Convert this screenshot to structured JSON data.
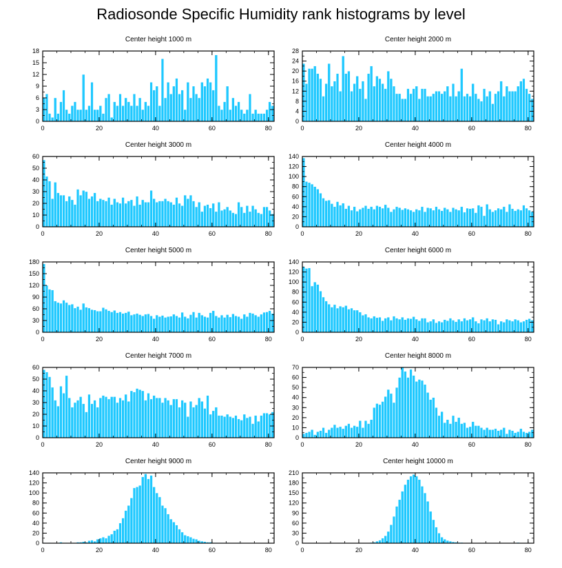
{
  "title": "Radiosonde Specific Humidity rank histograms by level",
  "colors": {
    "bar": "#1ec8ff",
    "bar_edge": "#ffffff",
    "axis": "#000000"
  },
  "chart_data": [
    {
      "type": "bar",
      "title": "Center height 1000 m",
      "xlim": [
        0,
        82
      ],
      "ylim": [
        0,
        18
      ],
      "xticks": [
        0,
        20,
        40,
        60,
        80
      ],
      "yticks": [
        0,
        3,
        6,
        9,
        12,
        15,
        18
      ],
      "values": [
        6,
        7,
        2,
        1,
        6,
        2,
        5,
        8,
        3,
        2,
        4,
        5,
        3,
        3,
        12,
        3,
        4,
        10,
        3,
        3,
        4,
        2,
        6,
        7,
        1,
        5,
        4,
        7,
        4,
        6,
        5,
        4,
        7,
        4,
        6,
        3,
        5,
        4,
        10,
        8,
        9,
        4,
        16,
        6,
        10,
        7,
        9,
        11,
        7,
        8,
        3,
        10,
        6,
        9,
        7,
        6,
        10,
        9,
        11,
        10,
        8,
        17,
        4,
        3,
        5,
        9,
        3,
        6,
        4,
        5,
        3,
        2,
        3,
        7,
        2,
        3,
        2,
        2,
        2,
        3,
        5,
        4
      ],
      "xlabel": "",
      "ylabel": ""
    },
    {
      "type": "bar",
      "title": "Center height 2000 m",
      "xlim": [
        0,
        82
      ],
      "ylim": [
        0,
        28
      ],
      "xticks": [
        0,
        20,
        40,
        60,
        80
      ],
      "yticks": [
        0,
        4,
        8,
        12,
        16,
        20,
        24,
        28
      ],
      "values": [
        23,
        15,
        21,
        21,
        22,
        19,
        17,
        10,
        15,
        23,
        14,
        16,
        19,
        12,
        26,
        19,
        20,
        12,
        15,
        18,
        13,
        16,
        9,
        19,
        22,
        14,
        18,
        17,
        15,
        13,
        20,
        17,
        14,
        11,
        11,
        9,
        9,
        13,
        11,
        13,
        14,
        9,
        13,
        13,
        10,
        10,
        11,
        12,
        12,
        11,
        12,
        14,
        10,
        15,
        10,
        12,
        21,
        10,
        11,
        10,
        15,
        11,
        9,
        8,
        13,
        10,
        12,
        7,
        11,
        12,
        16,
        10,
        14,
        12,
        12,
        12,
        14,
        16,
        17,
        13,
        11,
        9
      ],
      "xlabel": "",
      "ylabel": ""
    },
    {
      "type": "bar",
      "title": "Center height 3000 m",
      "xlim": [
        0,
        82
      ],
      "ylim": [
        0,
        60
      ],
      "xticks": [
        0,
        20,
        40,
        60,
        80
      ],
      "yticks": [
        0,
        10,
        20,
        30,
        40,
        50,
        60
      ],
      "values": [
        57,
        43,
        39,
        24,
        38,
        29,
        27,
        27,
        22,
        26,
        23,
        19,
        32,
        27,
        31,
        30,
        24,
        26,
        29,
        22,
        24,
        23,
        22,
        25,
        19,
        24,
        21,
        20,
        25,
        20,
        22,
        23,
        18,
        26,
        19,
        23,
        21,
        21,
        31,
        24,
        21,
        22,
        22,
        24,
        22,
        21,
        19,
        25,
        20,
        18,
        27,
        24,
        27,
        22,
        17,
        21,
        13,
        18,
        19,
        16,
        20,
        13,
        21,
        14,
        15,
        17,
        14,
        12,
        11,
        21,
        17,
        12,
        18,
        13,
        18,
        15,
        12,
        11,
        17,
        17,
        14,
        11
      ],
      "xlabel": "",
      "ylabel": ""
    },
    {
      "type": "bar",
      "title": "Center height 4000 m",
      "xlim": [
        0,
        82
      ],
      "ylim": [
        0,
        140
      ],
      "xticks": [
        0,
        20,
        40,
        60,
        80
      ],
      "yticks": [
        0,
        20,
        40,
        60,
        80,
        100,
        120,
        140
      ],
      "values": [
        137,
        90,
        88,
        85,
        80,
        75,
        67,
        57,
        52,
        53,
        46,
        40,
        50,
        43,
        47,
        36,
        42,
        33,
        40,
        31,
        35,
        38,
        42,
        36,
        40,
        35,
        42,
        40,
        37,
        44,
        38,
        30,
        35,
        40,
        38,
        34,
        37,
        35,
        33,
        30,
        35,
        33,
        40,
        30,
        38,
        37,
        33,
        40,
        35,
        32,
        38,
        35,
        30,
        38,
        35,
        33,
        40,
        29,
        37,
        36,
        37,
        28,
        43,
        40,
        22,
        45,
        35,
        30,
        33,
        37,
        35,
        40,
        30,
        45,
        36,
        32,
        35,
        33,
        43,
        37,
        33,
        30
      ],
      "xlabel": "",
      "ylabel": ""
    },
    {
      "type": "bar",
      "title": "Center height 5000 m",
      "xlim": [
        0,
        82
      ],
      "ylim": [
        0,
        180
      ],
      "xticks": [
        0,
        20,
        40,
        60,
        80
      ],
      "yticks": [
        0,
        30,
        60,
        90,
        120,
        150,
        180
      ],
      "values": [
        175,
        120,
        110,
        108,
        80,
        76,
        74,
        82,
        76,
        70,
        72,
        62,
        66,
        58,
        74,
        64,
        62,
        58,
        57,
        54,
        54,
        63,
        59,
        55,
        52,
        56,
        50,
        52,
        48,
        50,
        53,
        44,
        46,
        48,
        45,
        42,
        46,
        47,
        42,
        35,
        44,
        40,
        43,
        38,
        40,
        41,
        46,
        42,
        38,
        51,
        40,
        36,
        45,
        52,
        38,
        50,
        44,
        40,
        38,
        50,
        55,
        42,
        38,
        44,
        38,
        45,
        39,
        47,
        42,
        40,
        35,
        46,
        40,
        50,
        48,
        44,
        40,
        46,
        51,
        52,
        55,
        48
      ],
      "xlabel": "",
      "ylabel": ""
    },
    {
      "type": "bar",
      "title": "Center height 6000 m",
      "xlim": [
        0,
        82
      ],
      "ylim": [
        0,
        140
      ],
      "xticks": [
        0,
        20,
        40,
        60,
        80
      ],
      "yticks": [
        0,
        20,
        40,
        60,
        80,
        100,
        120,
        140
      ],
      "values": [
        130,
        127,
        128,
        92,
        100,
        95,
        82,
        70,
        62,
        56,
        50,
        55,
        48,
        52,
        50,
        53,
        46,
        48,
        44,
        44,
        40,
        34,
        36,
        30,
        28,
        32,
        29,
        30,
        23,
        28,
        30,
        24,
        32,
        28,
        26,
        30,
        25,
        28,
        27,
        31,
        26,
        23,
        28,
        28,
        20,
        22,
        26,
        19,
        22,
        20,
        25,
        23,
        28,
        24,
        21,
        26,
        22,
        28,
        24,
        26,
        30,
        22,
        18,
        26,
        24,
        28,
        22,
        26,
        25,
        16,
        22,
        20,
        26,
        24,
        22,
        26,
        24,
        20,
        22,
        25,
        27,
        24
      ],
      "xlabel": "",
      "ylabel": ""
    },
    {
      "type": "bar",
      "title": "Center height 7000 m",
      "xlim": [
        0,
        82
      ],
      "ylim": [
        0,
        60
      ],
      "xticks": [
        0,
        20,
        40,
        60,
        80
      ],
      "yticks": [
        0,
        10,
        20,
        30,
        40,
        50,
        60
      ],
      "values": [
        58,
        56,
        52,
        43,
        32,
        27,
        44,
        38,
        53,
        34,
        26,
        30,
        32,
        35,
        29,
        22,
        37,
        29,
        32,
        26,
        34,
        36,
        35,
        33,
        35,
        35,
        30,
        34,
        32,
        37,
        31,
        40,
        39,
        42,
        41,
        40,
        32,
        38,
        33,
        36,
        34,
        34,
        30,
        34,
        32,
        28,
        33,
        33,
        26,
        32,
        30,
        18,
        31,
        26,
        28,
        34,
        31,
        25,
        36,
        20,
        23,
        26,
        19,
        19,
        18,
        20,
        18,
        17,
        19,
        16,
        15,
        20,
        17,
        18,
        12,
        19,
        14,
        19,
        21,
        21,
        20,
        22
      ],
      "xlabel": "",
      "ylabel": ""
    },
    {
      "type": "bar",
      "title": "Center height 8000 m",
      "xlim": [
        0,
        82
      ],
      "ylim": [
        0,
        70
      ],
      "xticks": [
        0,
        20,
        40,
        60,
        80
      ],
      "yticks": [
        0,
        10,
        20,
        30,
        40,
        50,
        60,
        70
      ],
      "values": [
        4,
        5,
        6,
        8,
        3,
        6,
        7,
        10,
        5,
        8,
        10,
        13,
        10,
        11,
        9,
        12,
        14,
        10,
        12,
        11,
        17,
        10,
        17,
        14,
        18,
        30,
        34,
        33,
        36,
        41,
        48,
        44,
        35,
        50,
        60,
        70,
        66,
        60,
        68,
        62,
        56,
        58,
        57,
        53,
        45,
        38,
        40,
        30,
        22,
        26,
        15,
        18,
        14,
        22,
        16,
        20,
        14,
        15,
        10,
        11,
        16,
        12,
        12,
        10,
        8,
        10,
        8,
        8,
        9,
        7,
        8,
        10,
        4,
        8,
        7,
        5,
        6,
        9,
        6,
        5,
        6,
        8
      ],
      "xlabel": "",
      "ylabel": ""
    },
    {
      "type": "bar",
      "title": "Center height 9000 m",
      "xlim": [
        0,
        82
      ],
      "ylim": [
        0,
        140
      ],
      "xticks": [
        0,
        20,
        40,
        60,
        80
      ],
      "yticks": [
        0,
        20,
        40,
        60,
        80,
        100,
        120,
        140
      ],
      "values": [
        1,
        0,
        1,
        0,
        0,
        1,
        2,
        1,
        1,
        0,
        1,
        1,
        2,
        2,
        3,
        2,
        5,
        6,
        4,
        8,
        10,
        12,
        10,
        15,
        18,
        25,
        28,
        40,
        50,
        65,
        75,
        90,
        110,
        112,
        115,
        132,
        138,
        128,
        135,
        112,
        100,
        92,
        75,
        70,
        58,
        48,
        42,
        36,
        28,
        22,
        16,
        14,
        12,
        9,
        8,
        5,
        4,
        3,
        2,
        2,
        1,
        1,
        0,
        1,
        0,
        1,
        0,
        0,
        0,
        1,
        0,
        0,
        0,
        0,
        0,
        0,
        0,
        0,
        0,
        0,
        0,
        0
      ],
      "xlabel": "",
      "ylabel": ""
    },
    {
      "type": "bar",
      "title": "Center height 10000 m",
      "xlim": [
        0,
        82
      ],
      "ylim": [
        0,
        210
      ],
      "xticks": [
        0,
        20,
        40,
        60,
        80
      ],
      "yticks": [
        0,
        30,
        60,
        90,
        120,
        150,
        180,
        210
      ],
      "values": [
        0,
        0,
        0,
        0,
        0,
        0,
        0,
        0,
        0,
        0,
        0,
        0,
        0,
        0,
        0,
        0,
        1,
        0,
        0,
        0,
        0,
        0,
        0,
        1,
        2,
        3,
        6,
        9,
        15,
        22,
        35,
        55,
        80,
        110,
        130,
        155,
        175,
        190,
        200,
        205,
        200,
        190,
        170,
        150,
        125,
        95,
        70,
        48,
        30,
        18,
        12,
        8,
        6,
        4,
        3,
        2,
        2,
        1,
        1,
        1,
        0,
        0,
        0,
        1,
        0,
        0,
        0,
        0,
        0,
        0,
        0,
        0,
        0,
        0,
        0,
        0,
        2,
        0,
        0,
        0,
        0,
        0
      ],
      "xlabel": "",
      "ylabel": ""
    }
  ]
}
